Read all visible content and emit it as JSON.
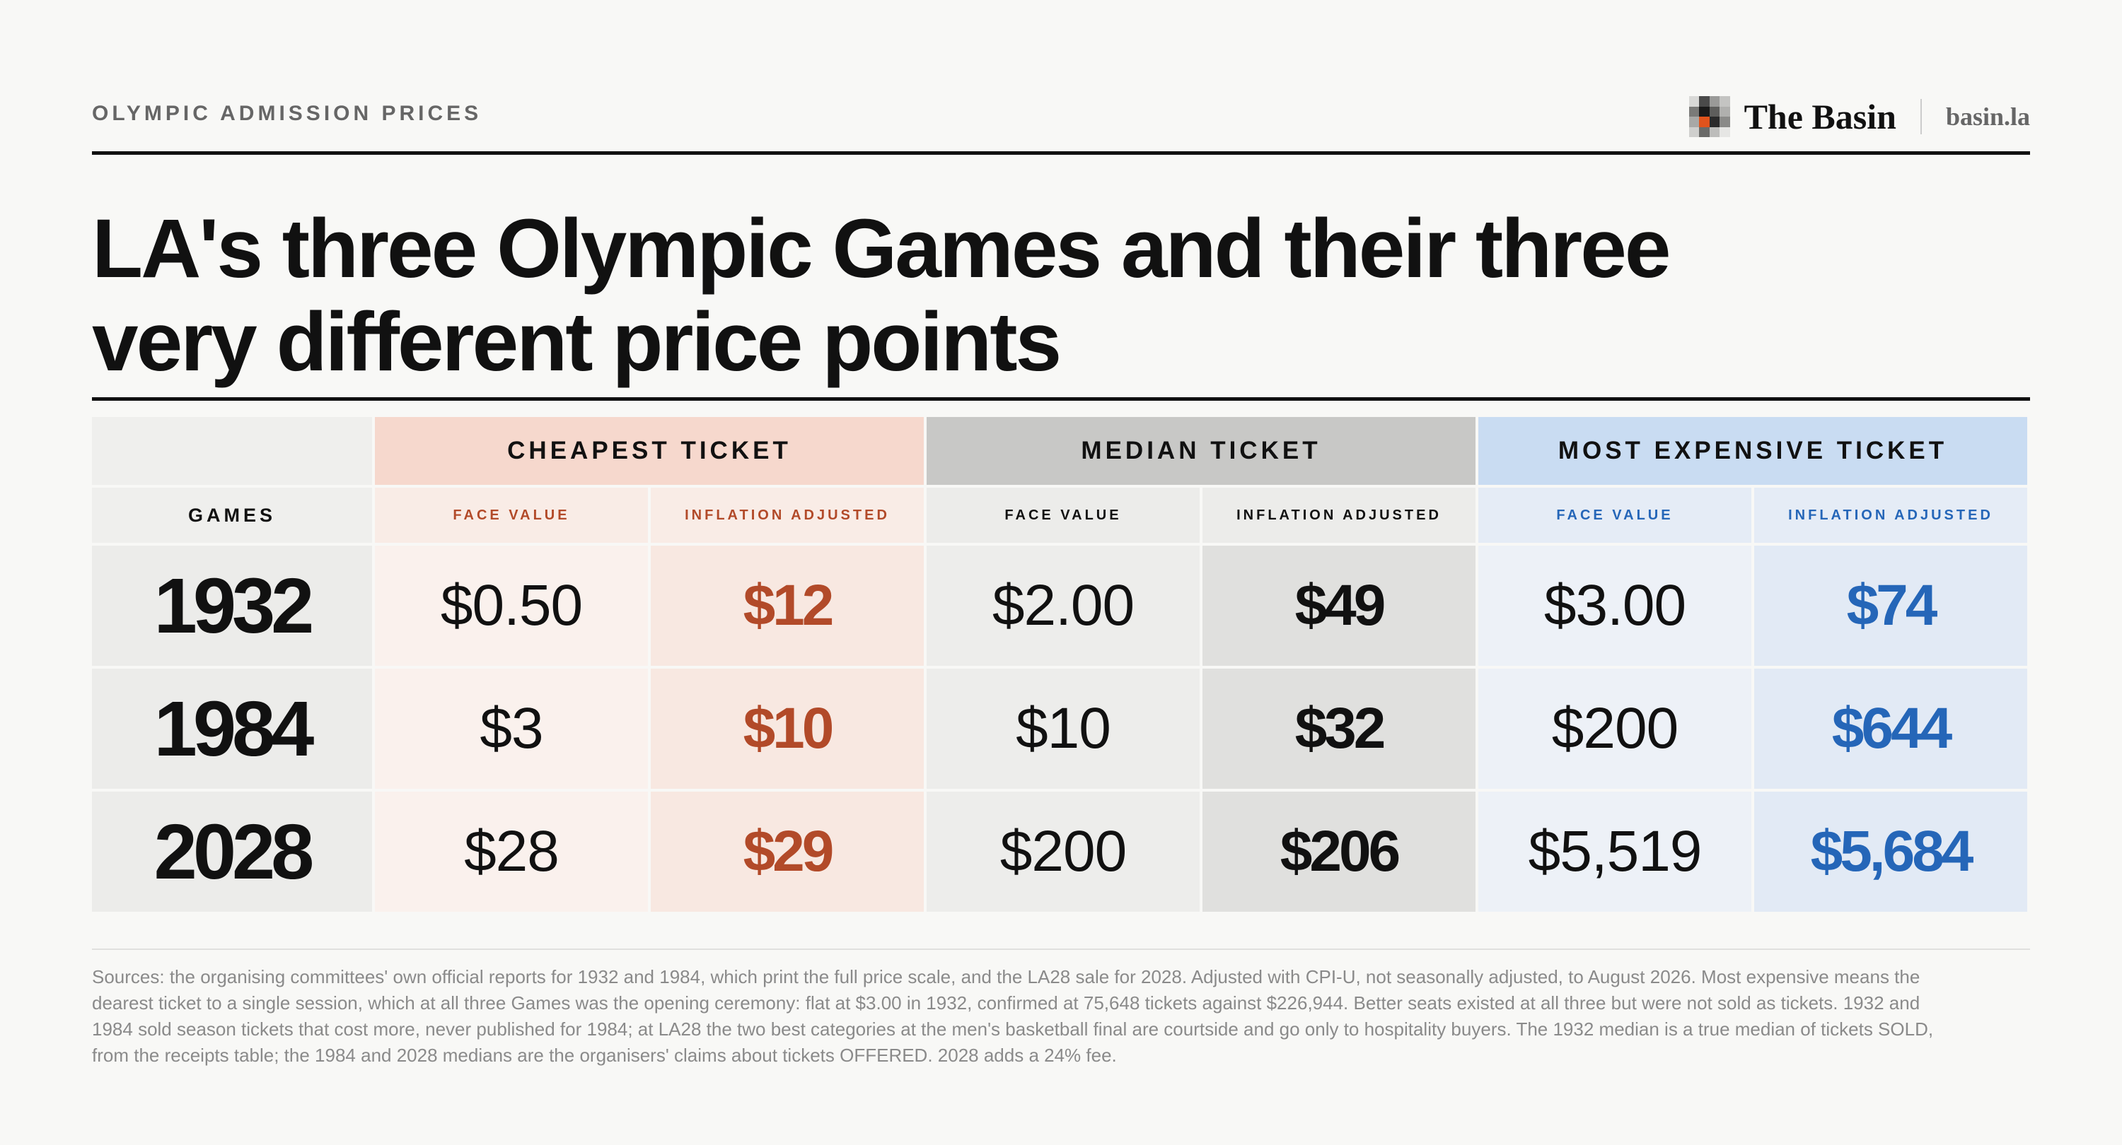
{
  "header": {
    "kicker": "OLYMPIC ADMISSION PRICES",
    "brand_name": "The Basin",
    "brand_url": "basin.la"
  },
  "title": "LA's three Olympic Games and their three very different price points",
  "colors": {
    "cheapest": "#b24a29",
    "median": "#111111",
    "most_expensive": "#2566b8"
  },
  "chart_data": {
    "type": "table",
    "row_header": "GAMES",
    "column_groups": [
      {
        "name": "CHEAPEST TICKET",
        "subcolumns": [
          "FACE VALUE",
          "INFLATION ADJUSTED"
        ]
      },
      {
        "name": "MEDIAN TICKET",
        "subcolumns": [
          "FACE VALUE",
          "INFLATION ADJUSTED"
        ]
      },
      {
        "name": "MOST EXPENSIVE TICKET",
        "subcolumns": [
          "FACE VALUE",
          "INFLATION ADJUSTED"
        ]
      }
    ],
    "rows": [
      {
        "games": "1932",
        "values": [
          "$0.50",
          "$12",
          "$2.00",
          "$49",
          "$3.00",
          "$74"
        ]
      },
      {
        "games": "1984",
        "values": [
          "$3",
          "$10",
          "$10",
          "$32",
          "$200",
          "$644"
        ]
      },
      {
        "games": "2028",
        "values": [
          "$28",
          "$29",
          "$200",
          "$206",
          "$5,519",
          "$5,684"
        ]
      }
    ]
  },
  "sources": "Sources: the organising committees' own official reports for 1932 and 1984, which print the full price scale, and the LA28 sale for 2028. Adjusted with CPI-U, not seasonally adjusted, to August 2026. Most expensive means the dearest ticket to a single session, which at all three Games was the opening ceremony: flat at $3.00 in 1932, confirmed at 75,648 tickets against $226,944. Better seats existed at all three but were not sold as tickets. 1932 and 1984 sold season tickets that cost more, never published for 1984; at LA28 the two best categories at the men's basketball final are courtside and go only to hospitality buyers. The 1932 median is a true median of tickets SOLD, from the receipts table; the 1984 and 2028 medians are the organisers' claims about tickets OFFERED. 2028 adds a 24% fee."
}
